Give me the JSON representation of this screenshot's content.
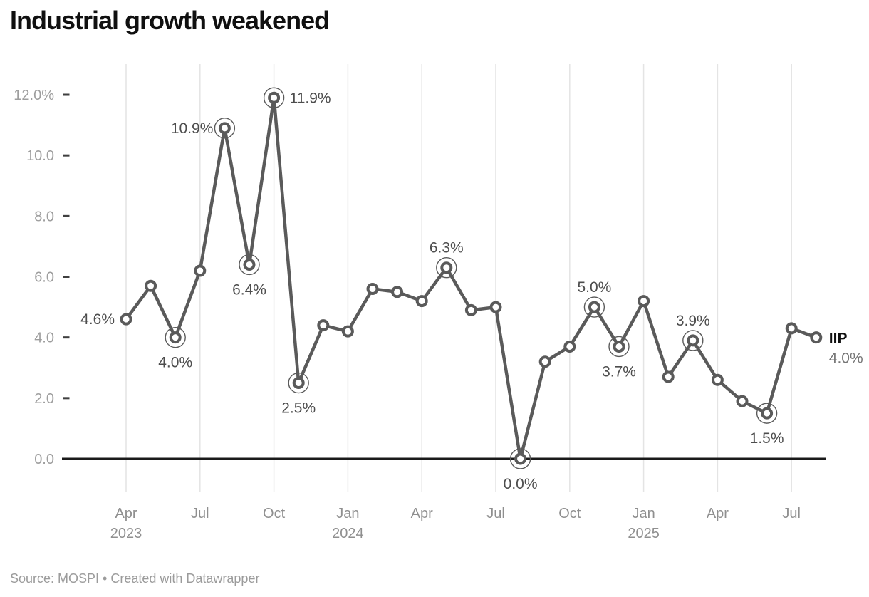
{
  "header": {
    "title": "Industrial growth weakened"
  },
  "footer": {
    "source": "Source: MOSPI • Created with Datawrapper"
  },
  "chart_data": {
    "type": "line",
    "title": "Industrial growth weakened",
    "series_name": "IIP",
    "unit": "%",
    "x": [
      "Apr 2023",
      "May 2023",
      "Jun 2023",
      "Jul 2023",
      "Aug 2023",
      "Sep 2023",
      "Oct 2023",
      "Nov 2023",
      "Dec 2023",
      "Jan 2024",
      "Feb 2024",
      "Mar 2024",
      "Apr 2024",
      "May 2024",
      "Jun 2024",
      "Jul 2024",
      "Aug 2024",
      "Sep 2024",
      "Oct 2024",
      "Nov 2024",
      "Dec 2024",
      "Jan 2025",
      "Feb 2025",
      "Mar 2025",
      "Apr 2025",
      "May 2025",
      "Jun 2025",
      "Jul 2025",
      "Aug 2025"
    ],
    "values": [
      4.6,
      5.7,
      4.0,
      6.2,
      10.9,
      6.4,
      11.9,
      2.5,
      4.4,
      4.2,
      5.6,
      5.5,
      5.2,
      6.3,
      4.9,
      5.0,
      0.0,
      3.2,
      3.7,
      5.0,
      3.7,
      5.2,
      2.7,
      3.9,
      2.6,
      1.9,
      1.5,
      4.3,
      4.0
    ],
    "ylim": [
      0,
      12
    ],
    "grid": "vertical-only",
    "legend_position": "end-of-line",
    "yticks": [
      {
        "value": 0,
        "label": "0.0"
      },
      {
        "value": 2,
        "label": "2.0"
      },
      {
        "value": 4,
        "label": "4.0"
      },
      {
        "value": 6,
        "label": "6.0"
      },
      {
        "value": 8,
        "label": "8.0"
      },
      {
        "value": 10,
        "label": "10.0"
      },
      {
        "value": 12,
        "label": "12.0%"
      }
    ],
    "xticks": [
      {
        "index": 0,
        "label": "Apr",
        "year": "2023"
      },
      {
        "index": 3,
        "label": "Jul"
      },
      {
        "index": 6,
        "label": "Oct"
      },
      {
        "index": 9,
        "label": "Jan",
        "year": "2024"
      },
      {
        "index": 12,
        "label": "Apr"
      },
      {
        "index": 15,
        "label": "Jul"
      },
      {
        "index": 18,
        "label": "Oct"
      },
      {
        "index": 21,
        "label": "Jan",
        "year": "2025"
      },
      {
        "index": 24,
        "label": "Apr"
      },
      {
        "index": 27,
        "label": "Jul"
      }
    ],
    "annotations": [
      {
        "index": 0,
        "text": "4.6%",
        "position": "left",
        "ring": false
      },
      {
        "index": 2,
        "text": "4.0%",
        "position": "below",
        "ring": true
      },
      {
        "index": 4,
        "text": "10.9%",
        "position": "left",
        "ring": true
      },
      {
        "index": 5,
        "text": "6.4%",
        "position": "below",
        "ring": true
      },
      {
        "index": 6,
        "text": "11.9%",
        "position": "right",
        "ring": true
      },
      {
        "index": 7,
        "text": "2.5%",
        "position": "below",
        "ring": true
      },
      {
        "index": 13,
        "text": "6.3%",
        "position": "above",
        "ring": true
      },
      {
        "index": 16,
        "text": "0.0%",
        "position": "below",
        "ring": true
      },
      {
        "index": 19,
        "text": "5.0%",
        "position": "above",
        "ring": true
      },
      {
        "index": 20,
        "text": "3.7%",
        "position": "below",
        "ring": true
      },
      {
        "index": 23,
        "text": "3.9%",
        "position": "above",
        "ring": true
      },
      {
        "index": 26,
        "text": "1.5%",
        "position": "below",
        "ring": true
      }
    ],
    "end_label": {
      "name": "IIP",
      "value": "4.0%"
    },
    "colors": {
      "line": "#5a5a5a",
      "marker_fill": "#ffffff",
      "data_label": "#4d4d4d",
      "axis_label": "#9e9e9e",
      "x_label": "#8f8f8f",
      "grid": "#e4e4e4",
      "baseline": "#1a1a1a",
      "tick_dash": "#3f3f3f",
      "end_value": "#767676",
      "title": "#101010",
      "source": "#9b9b9b"
    }
  }
}
